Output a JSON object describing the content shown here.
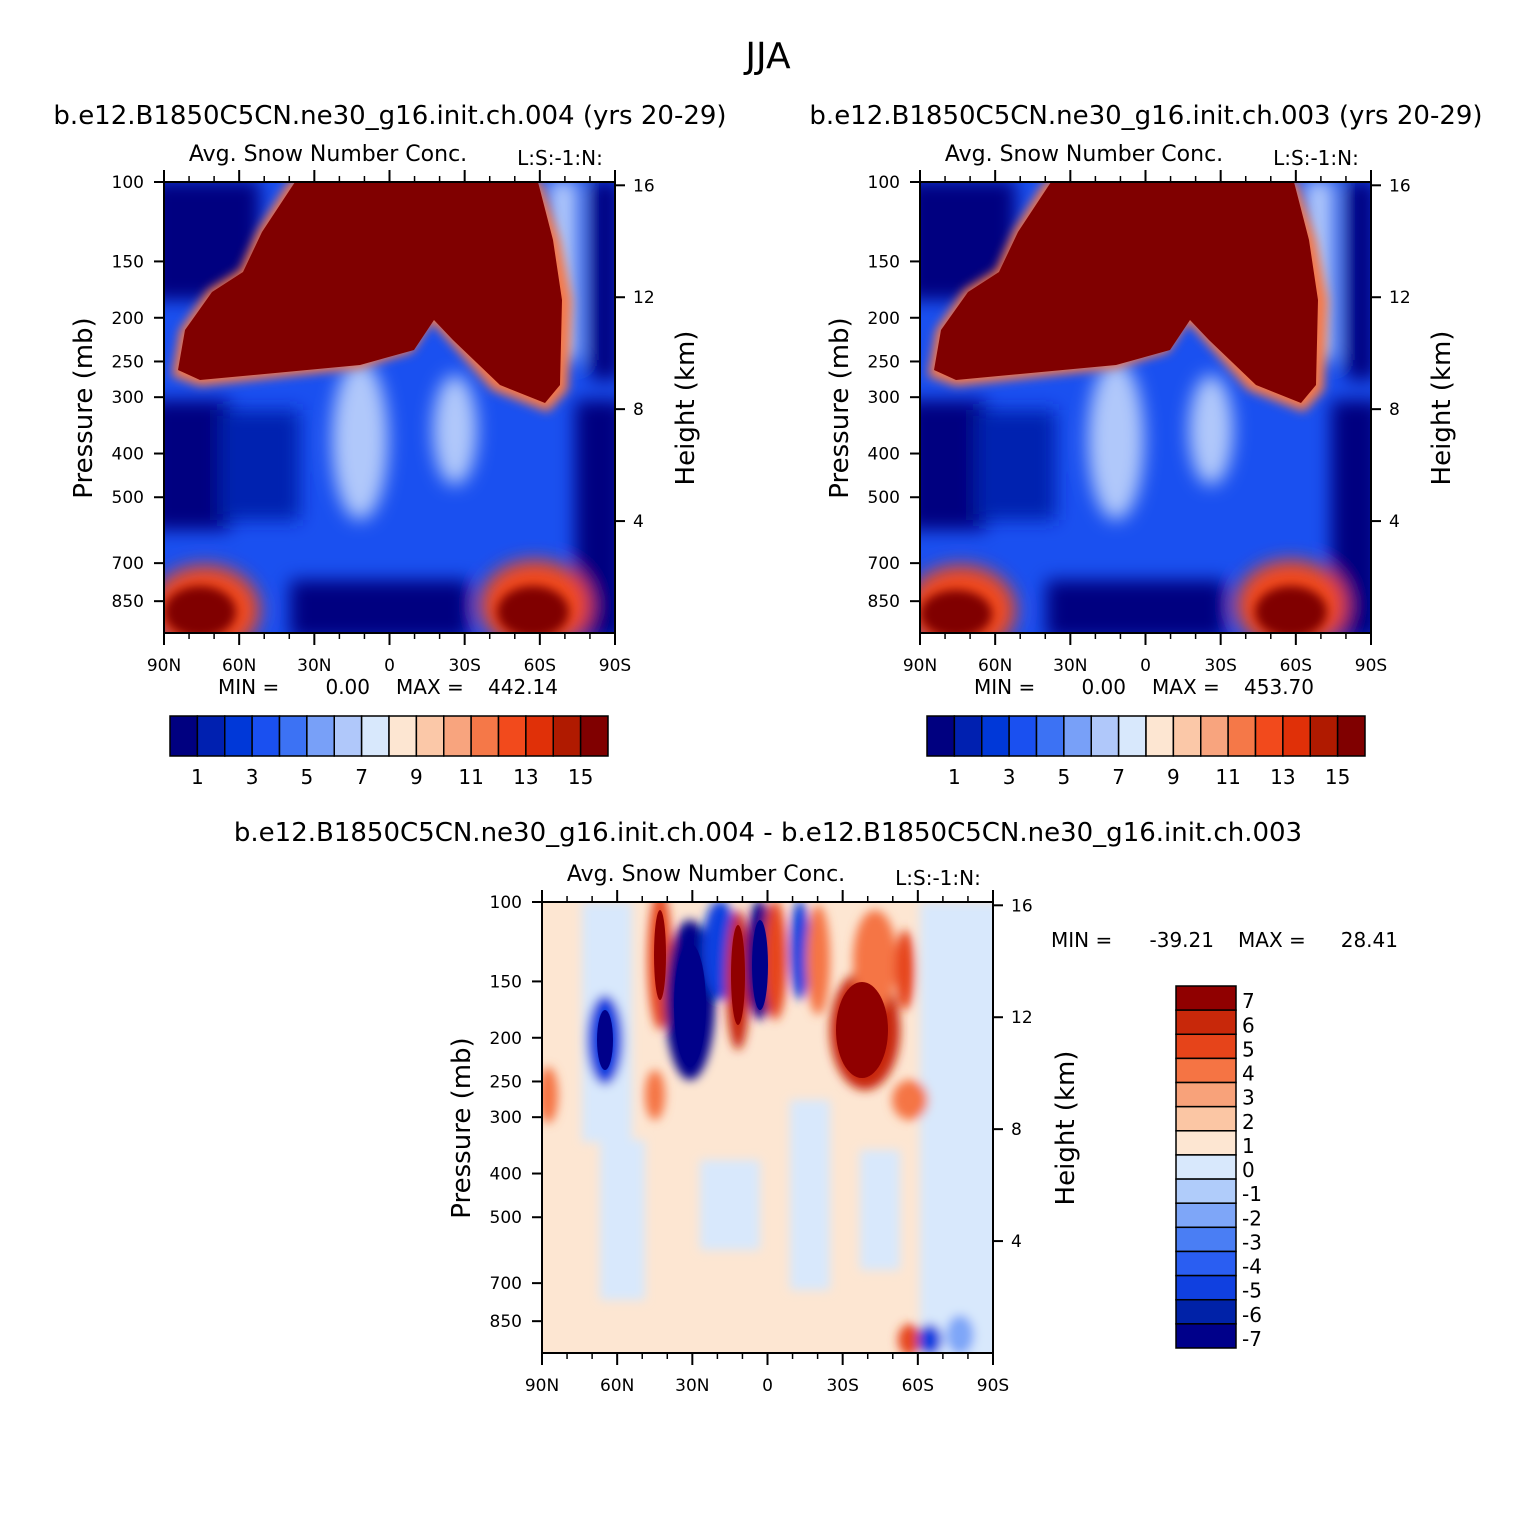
{
  "figure": {
    "title": "JJA"
  },
  "palettes": {
    "abs": [
      "#000080",
      "#0020b0",
      "#0038d8",
      "#1a50f0",
      "#3c72f4",
      "#78a0f8",
      "#b0c8fa",
      "#d8e8fc",
      "#fde6d2",
      "#fbc8a8",
      "#f8a47e",
      "#f57848",
      "#f24a1c",
      "#e03008",
      "#b01a00",
      "#800000"
    ],
    "diff": [
      "#00008a",
      "#0022a8",
      "#1040e0",
      "#2a5ef2",
      "#4a7ef4",
      "#7ea6f8",
      "#b0ccfa",
      "#d8e8fc",
      "#fde6d2",
      "#fbc6a4",
      "#f8a27a",
      "#f57444",
      "#e6441a",
      "#c8280a",
      "#900000"
    ]
  },
  "chart_data": [
    {
      "id": "panel-004",
      "type": "heatmap",
      "title": "b.e12.B1850C5CN.ne30_g16.init.ch.004 (yrs 20-29)",
      "subtitle": "Avg. Snow Number Conc.",
      "units_label": "L:S:-1:N:",
      "xlabel": "",
      "ylabel": "Pressure (mb)",
      "y2label": "Height (km)",
      "x_ticklabels": [
        "90N",
        "60N",
        "30N",
        "0",
        "30S",
        "60S",
        "90S"
      ],
      "y_ticks": [
        100,
        150,
        200,
        250,
        300,
        400,
        500,
        700,
        850
      ],
      "y2_ticks": [
        16,
        12,
        8,
        4
      ],
      "stats": {
        "min_label": "MIN =",
        "min": "0.00",
        "max_label": "MAX =",
        "max": "442.14"
      },
      "colorbar": {
        "orientation": "horizontal",
        "labels": [
          "1",
          "3",
          "5",
          "7",
          "9",
          "11",
          "13",
          "15"
        ]
      }
    },
    {
      "id": "panel-003",
      "type": "heatmap",
      "title": "b.e12.B1850C5CN.ne30_g16.init.ch.003 (yrs 20-29)",
      "subtitle": "Avg. Snow Number Conc.",
      "units_label": "L:S:-1:N:",
      "xlabel": "",
      "ylabel": "Pressure (mb)",
      "y2label": "Height (km)",
      "x_ticklabels": [
        "90N",
        "60N",
        "30N",
        "0",
        "30S",
        "60S",
        "90S"
      ],
      "y_ticks": [
        100,
        150,
        200,
        250,
        300,
        400,
        500,
        700,
        850
      ],
      "y2_ticks": [
        16,
        12,
        8,
        4
      ],
      "stats": {
        "min_label": "MIN =",
        "min": "0.00",
        "max_label": "MAX =",
        "max": "453.70"
      },
      "colorbar": {
        "orientation": "horizontal",
        "labels": [
          "1",
          "3",
          "5",
          "7",
          "9",
          "11",
          "13",
          "15"
        ]
      }
    },
    {
      "id": "panel-diff",
      "type": "heatmap",
      "title": "b.e12.B1850C5CN.ne30_g16.init.ch.004 - b.e12.B1850C5CN.ne30_g16.init.ch.003",
      "subtitle": "Avg. Snow Number Conc.",
      "units_label": "L:S:-1:N:",
      "xlabel": "",
      "ylabel": "Pressure (mb)",
      "y2label": "Height (km)",
      "x_ticklabels": [
        "90N",
        "60N",
        "30N",
        "0",
        "30S",
        "60S",
        "90S"
      ],
      "y_ticks": [
        100,
        150,
        200,
        250,
        300,
        400,
        500,
        700,
        850
      ],
      "y2_ticks": [
        16,
        12,
        8,
        4
      ],
      "stats": {
        "min_label": "MIN =",
        "min": "-39.21",
        "max_label": "MAX =",
        "max": "28.41"
      },
      "colorbar": {
        "orientation": "vertical",
        "labels": [
          "7",
          "6",
          "5",
          "4",
          "3",
          "2",
          "1",
          "0",
          "-1",
          "-2",
          "-3",
          "-4",
          "-5",
          "-6",
          "-7"
        ]
      }
    }
  ]
}
